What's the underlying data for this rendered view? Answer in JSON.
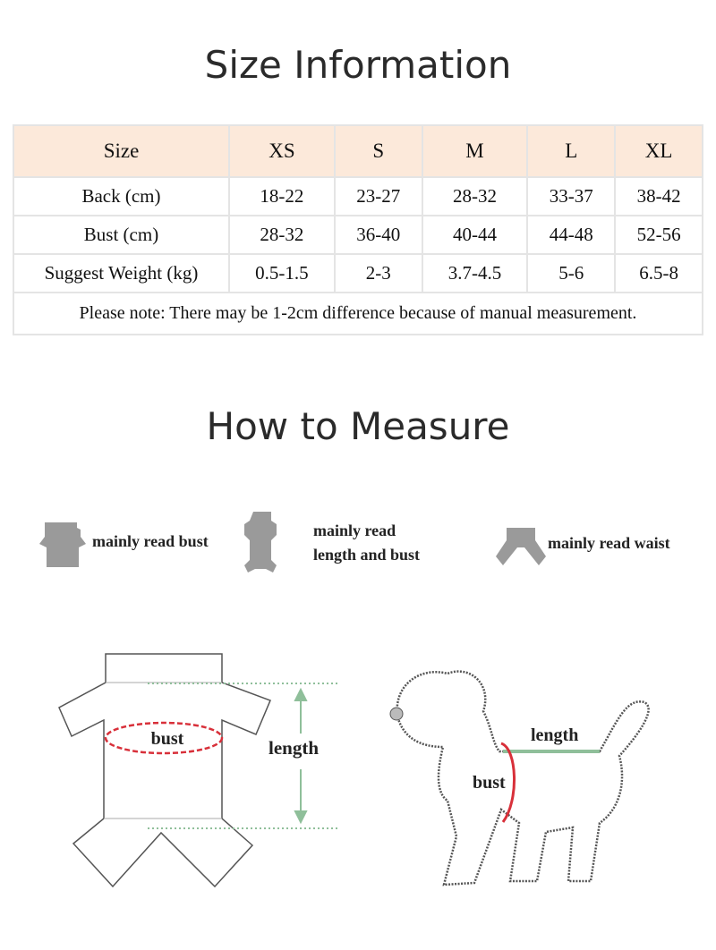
{
  "size_info": {
    "title": "Size Information",
    "header": [
      "Size",
      "XS",
      "S",
      "M",
      "L",
      "XL"
    ],
    "rows": [
      [
        "Back (cm)",
        "18-22",
        "23-27",
        "28-32",
        "33-37",
        "38-42"
      ],
      [
        "Bust (cm)",
        "28-32",
        "36-40",
        "40-44",
        "44-48",
        "52-56"
      ],
      [
        "Suggest Weight (kg)",
        "0.5-1.5",
        "2-3",
        "3.7-4.5",
        "5-6",
        "6.5-8"
      ]
    ],
    "note": "Please note: There may be 1-2cm difference because of manual measurement.",
    "header_color": "#fce9da"
  },
  "how_to": {
    "title": "How to Measure",
    "legend": [
      {
        "icon": "shirt-icon",
        "text": "mainly read bust"
      },
      {
        "icon": "jumpsuit-icon",
        "line1": "mainly read",
        "line2": "length and bust"
      },
      {
        "icon": "pants-icon",
        "text": "mainly read waist"
      }
    ],
    "garment_labels": {
      "bust": "bust",
      "length": "length"
    },
    "dog_labels": {
      "bust": "bust",
      "length": "length"
    },
    "colors": {
      "bust": "#d8303a",
      "length": "#8fbf9a",
      "icon": "#9a9a9a"
    }
  }
}
